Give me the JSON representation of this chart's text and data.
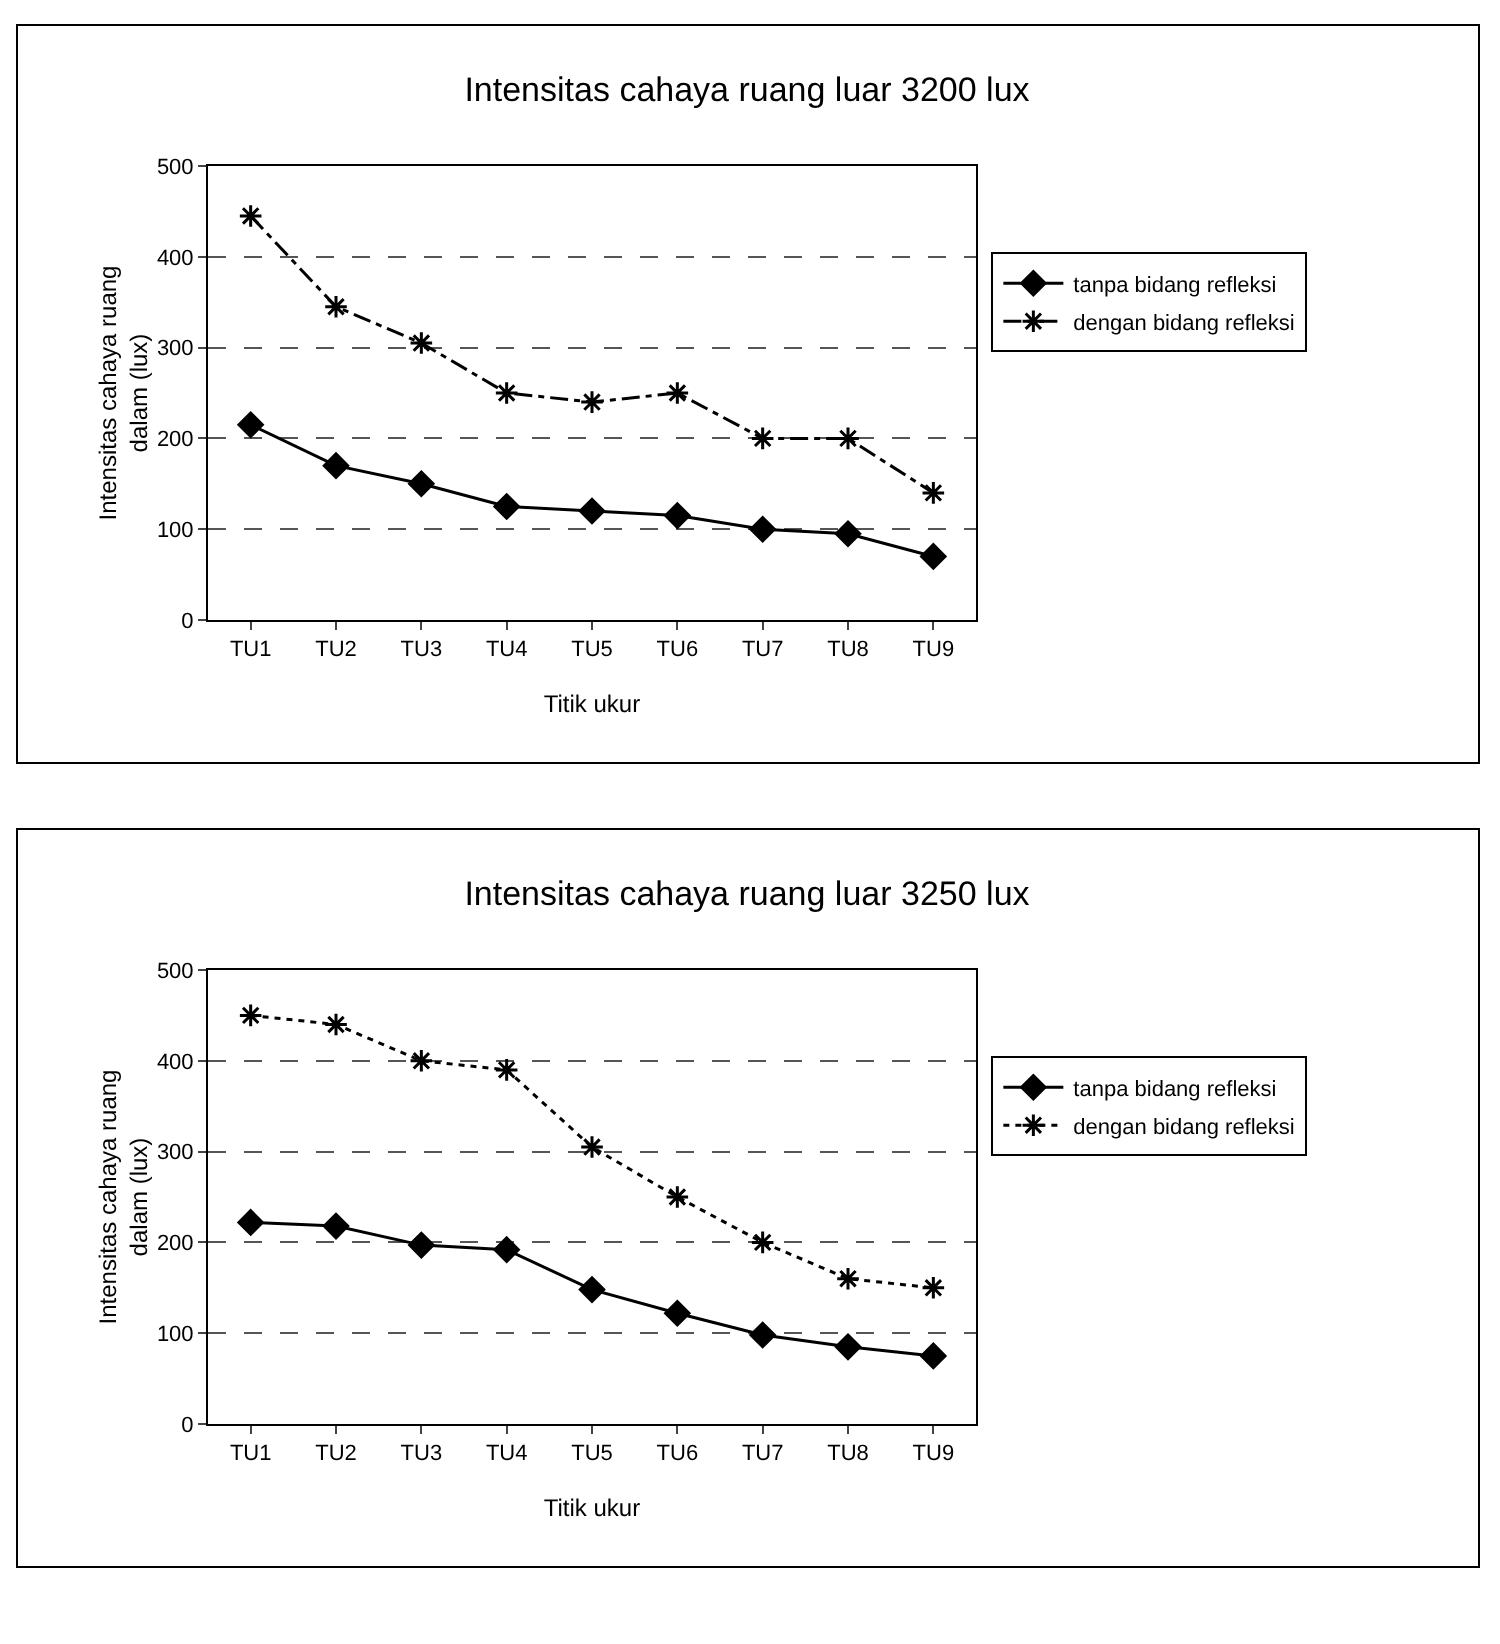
{
  "chart_data": [
    {
      "type": "line",
      "title": "Intensitas cahaya ruang luar 3200 lux",
      "xlabel": "Titik ukur",
      "ylabel": "Intensitas cahaya ruang\ndalam (lux)",
      "categories": [
        "TU1",
        "TU2",
        "TU3",
        "TU4",
        "TU5",
        "TU6",
        "TU7",
        "TU8",
        "TU9"
      ],
      "series": [
        {
          "name": "tanpa bidang refleksi",
          "color": "#000000",
          "marker": "diamond",
          "line_style": "solid",
          "values": [
            215,
            170,
            150,
            125,
            120,
            115,
            100,
            95,
            70
          ]
        },
        {
          "name": "dengan bidang refleksi",
          "color": "#000000",
          "marker": "cross",
          "line_style": "dashed",
          "values": [
            445,
            345,
            305,
            250,
            240,
            250,
            200,
            200,
            140
          ]
        }
      ],
      "ylim": [
        0,
        500
      ],
      "yticks": [
        0,
        100,
        200,
        300,
        400,
        500
      ],
      "grid": "y",
      "legend": "right"
    },
    {
      "type": "line",
      "title": "Intensitas cahaya ruang luar 3250 lux",
      "xlabel": "Titik ukur",
      "ylabel": "Intensitas cahaya ruang\ndalam (lux)",
      "categories": [
        "TU1",
        "TU2",
        "TU3",
        "TU4",
        "TU5",
        "TU6",
        "TU7",
        "TU8",
        "TU9"
      ],
      "series": [
        {
          "name": "tanpa bidang refleksi",
          "color": "#000000",
          "marker": "diamond",
          "line_style": "solid",
          "values": [
            222,
            218,
            197,
            192,
            148,
            122,
            98,
            85,
            75
          ]
        },
        {
          "name": "dengan bidang refleksi",
          "color": "#000000",
          "marker": "cross",
          "line_style": "dotted",
          "values": [
            450,
            440,
            400,
            390,
            305,
            250,
            200,
            160,
            150
          ]
        }
      ],
      "ylim": [
        0,
        500
      ],
      "yticks": [
        0,
        100,
        200,
        300,
        400,
        500
      ],
      "grid": "y",
      "legend": "right"
    }
  ]
}
